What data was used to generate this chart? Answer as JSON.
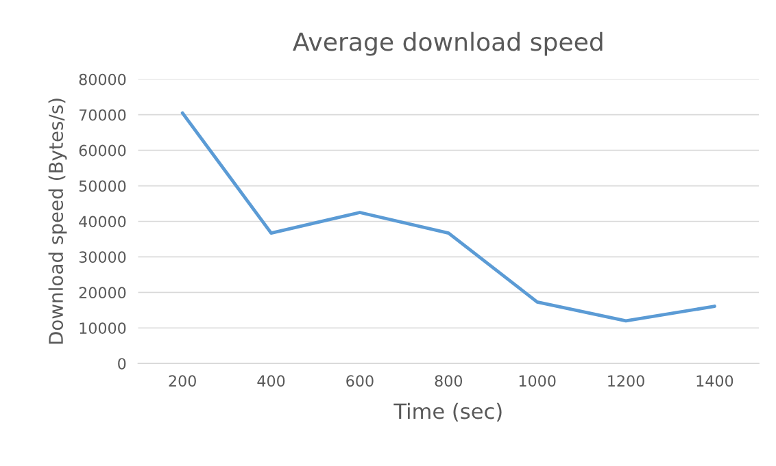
{
  "chart_data": {
    "type": "line",
    "title": "Average download speed",
    "xlabel": "Time (sec)",
    "ylabel": "Download speed (Bytes/s)",
    "categories": [
      "200",
      "400",
      "600",
      "800",
      "1000",
      "1200",
      "1400"
    ],
    "series": [
      {
        "color": "#5b9bd5",
        "values": [
          70500,
          36700,
          42500,
          36700,
          17300,
          12000,
          16100
        ]
      }
    ],
    "ylim": [
      0,
      80000
    ],
    "yticks": [
      0,
      10000,
      20000,
      30000,
      40000,
      50000,
      60000,
      70000,
      80000
    ],
    "grid": "y",
    "marker": "none",
    "line_style": "solid"
  }
}
